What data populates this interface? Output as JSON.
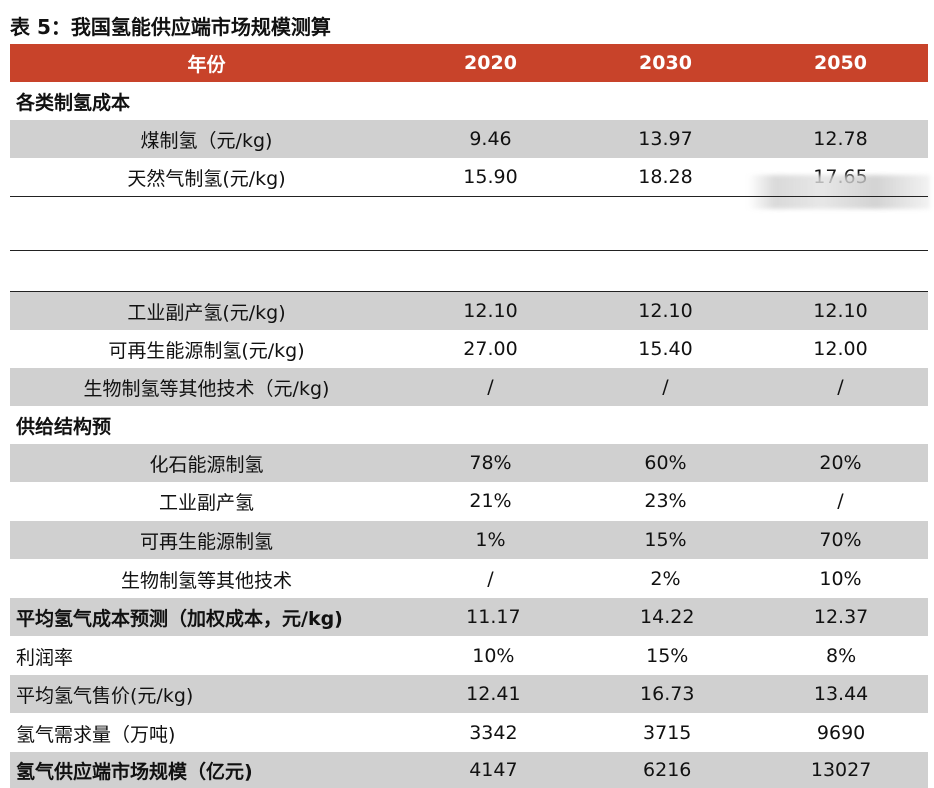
{
  "title": "表 5：我国氢能供应端市场规模测算",
  "header": [
    "年份",
    "2020",
    "2030",
    "2050"
  ],
  "section1": "各类制氢成本",
  "rows_a": [
    {
      "label": "煤制氢（元/kg)",
      "v": [
        "9.46",
        "13.97",
        "12.78"
      ]
    },
    {
      "label": "天然气制氢(元/kg)",
      "v": [
        "15.90",
        "18.28",
        "17.65"
      ]
    }
  ],
  "rows_b": [
    {
      "label": "工业副产氢(元/kg)",
      "v": [
        "12.10",
        "12.10",
        "12.10"
      ]
    },
    {
      "label": "可再生能源制氢(元/kg)",
      "v": [
        "27.00",
        "15.40",
        "12.00"
      ]
    },
    {
      "label": "生物制氢等其他技术（元/kg)",
      "v": [
        "/",
        "/",
        "/"
      ]
    }
  ],
  "section2": "供给结构预",
  "rows_c": [
    {
      "label": "化石能源制氢",
      "v": [
        "78%",
        "60%",
        "20%"
      ]
    },
    {
      "label": "工业副产氢",
      "v": [
        "21%",
        "23%",
        "/"
      ]
    },
    {
      "label": "可再生能源制氢",
      "v": [
        "1%",
        "15%",
        "70%"
      ]
    },
    {
      "label": "生物制氢等其他技术",
      "v": [
        "/",
        "2%",
        "10%"
      ]
    }
  ],
  "rows_d": [
    {
      "label": "平均氢气成本预测（加权成本，元/kg)",
      "v": [
        "11.17",
        "14.22",
        "12.37"
      ]
    },
    {
      "label": "利润率",
      "v": [
        "10%",
        "15%",
        "8%"
      ]
    },
    {
      "label": "平均氢气售价(元/kg)",
      "v": [
        "12.41",
        "16.73",
        "13.44"
      ]
    },
    {
      "label": "氢气需求量（万吨)",
      "v": [
        "3342",
        "3715",
        "9690"
      ]
    },
    {
      "label": "氢气供应端市场规模（亿元)",
      "v": [
        "4147",
        "6216",
        "13027"
      ]
    }
  ]
}
